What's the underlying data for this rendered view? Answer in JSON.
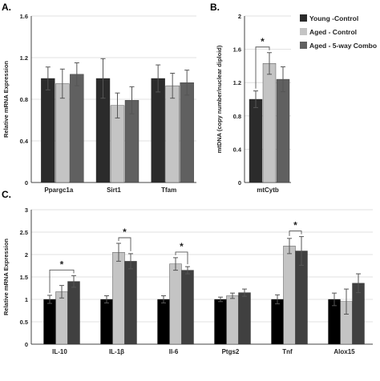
{
  "colors": {
    "young": "#2b2b2b",
    "aged": "#c4c4c4",
    "combo": "#606060",
    "young_c": "#000000"
  },
  "legend": {
    "items": [
      {
        "label": "Young -Control",
        "color": "#2b2b2b"
      },
      {
        "label": "Aged - Control",
        "color": "#c4c4c4"
      },
      {
        "label": "Aged - 5-way Combo",
        "color": "#606060"
      }
    ]
  },
  "chart_data": [
    {
      "panel": "A.",
      "type": "bar",
      "ylabel": "Relative mRNA Expression",
      "ylim": [
        0,
        1.6
      ],
      "yticks": [
        "0",
        "0.4",
        "0.8",
        "1.2",
        "1.6"
      ],
      "grid": true,
      "categories": [
        "Ppargc1a",
        "Sirt1",
        "Tfam"
      ],
      "series": [
        {
          "name": "Young -Control",
          "values": [
            1.0,
            1.0,
            1.0
          ],
          "errors": [
            0.11,
            0.19,
            0.13
          ]
        },
        {
          "name": "Aged - Control",
          "values": [
            0.95,
            0.74,
            0.93
          ],
          "errors": [
            0.14,
            0.12,
            0.12
          ]
        },
        {
          "name": "Aged - 5-way Combo",
          "values": [
            1.04,
            0.79,
            0.96
          ],
          "errors": [
            0.11,
            0.13,
            0.12
          ]
        }
      ],
      "significance": []
    },
    {
      "panel": "B.",
      "type": "bar",
      "ylabel": "mtDNA (copy number/nuclear diploid)",
      "ylim": [
        0,
        2.0
      ],
      "yticks": [
        "0",
        "0.4",
        "0.8",
        "1.2",
        "1.6",
        "2"
      ],
      "grid": true,
      "categories": [
        "mtCytb"
      ],
      "series": [
        {
          "name": "Young -Control",
          "values": [
            1.0
          ],
          "errors": [
            0.1
          ]
        },
        {
          "name": "Aged - Control",
          "values": [
            1.43
          ],
          "errors": [
            0.13
          ]
        },
        {
          "name": "Aged - 5-way Combo",
          "values": [
            1.24
          ],
          "errors": [
            0.15
          ]
        }
      ],
      "significance": [
        {
          "category": 0,
          "from": 0,
          "to": 1,
          "label": "*"
        }
      ]
    },
    {
      "panel": "C.",
      "type": "bar",
      "ylabel": "Relative mRNA Expression",
      "ylim": [
        0,
        3.0
      ],
      "yticks": [
        "0",
        "0.5",
        "1",
        "1.5",
        "2",
        "2.5",
        "3"
      ],
      "grid": true,
      "categories": [
        "IL-10",
        "IL-1β",
        "Il-6",
        "Ptgs2",
        "Tnf",
        "Alox15"
      ],
      "series": [
        {
          "name": "Young -Control",
          "values": [
            1.0,
            1.0,
            1.0,
            1.0,
            1.0,
            1.0
          ],
          "errors": [
            0.09,
            0.08,
            0.08,
            0.05,
            0.1,
            0.14
          ]
        },
        {
          "name": "Aged - Control",
          "values": [
            1.17,
            2.05,
            1.79,
            1.08,
            2.19,
            0.95
          ],
          "errors": [
            0.14,
            0.2,
            0.14,
            0.06,
            0.17,
            0.28
          ]
        },
        {
          "name": "Aged - 5-way Combo",
          "values": [
            1.4,
            1.85,
            1.65,
            1.15,
            2.08,
            1.36
          ],
          "errors": [
            0.13,
            0.17,
            0.08,
            0.08,
            0.32,
            0.21
          ]
        }
      ],
      "significance": [
        {
          "category": 0,
          "from": 0,
          "to": 2,
          "label": "*"
        },
        {
          "category": 1,
          "from": 1,
          "to": 2,
          "label": "*"
        },
        {
          "category": 2,
          "from": 1,
          "to": 2,
          "label": "*"
        },
        {
          "category": 4,
          "from": 1,
          "to": 2,
          "label": "*"
        }
      ]
    }
  ]
}
